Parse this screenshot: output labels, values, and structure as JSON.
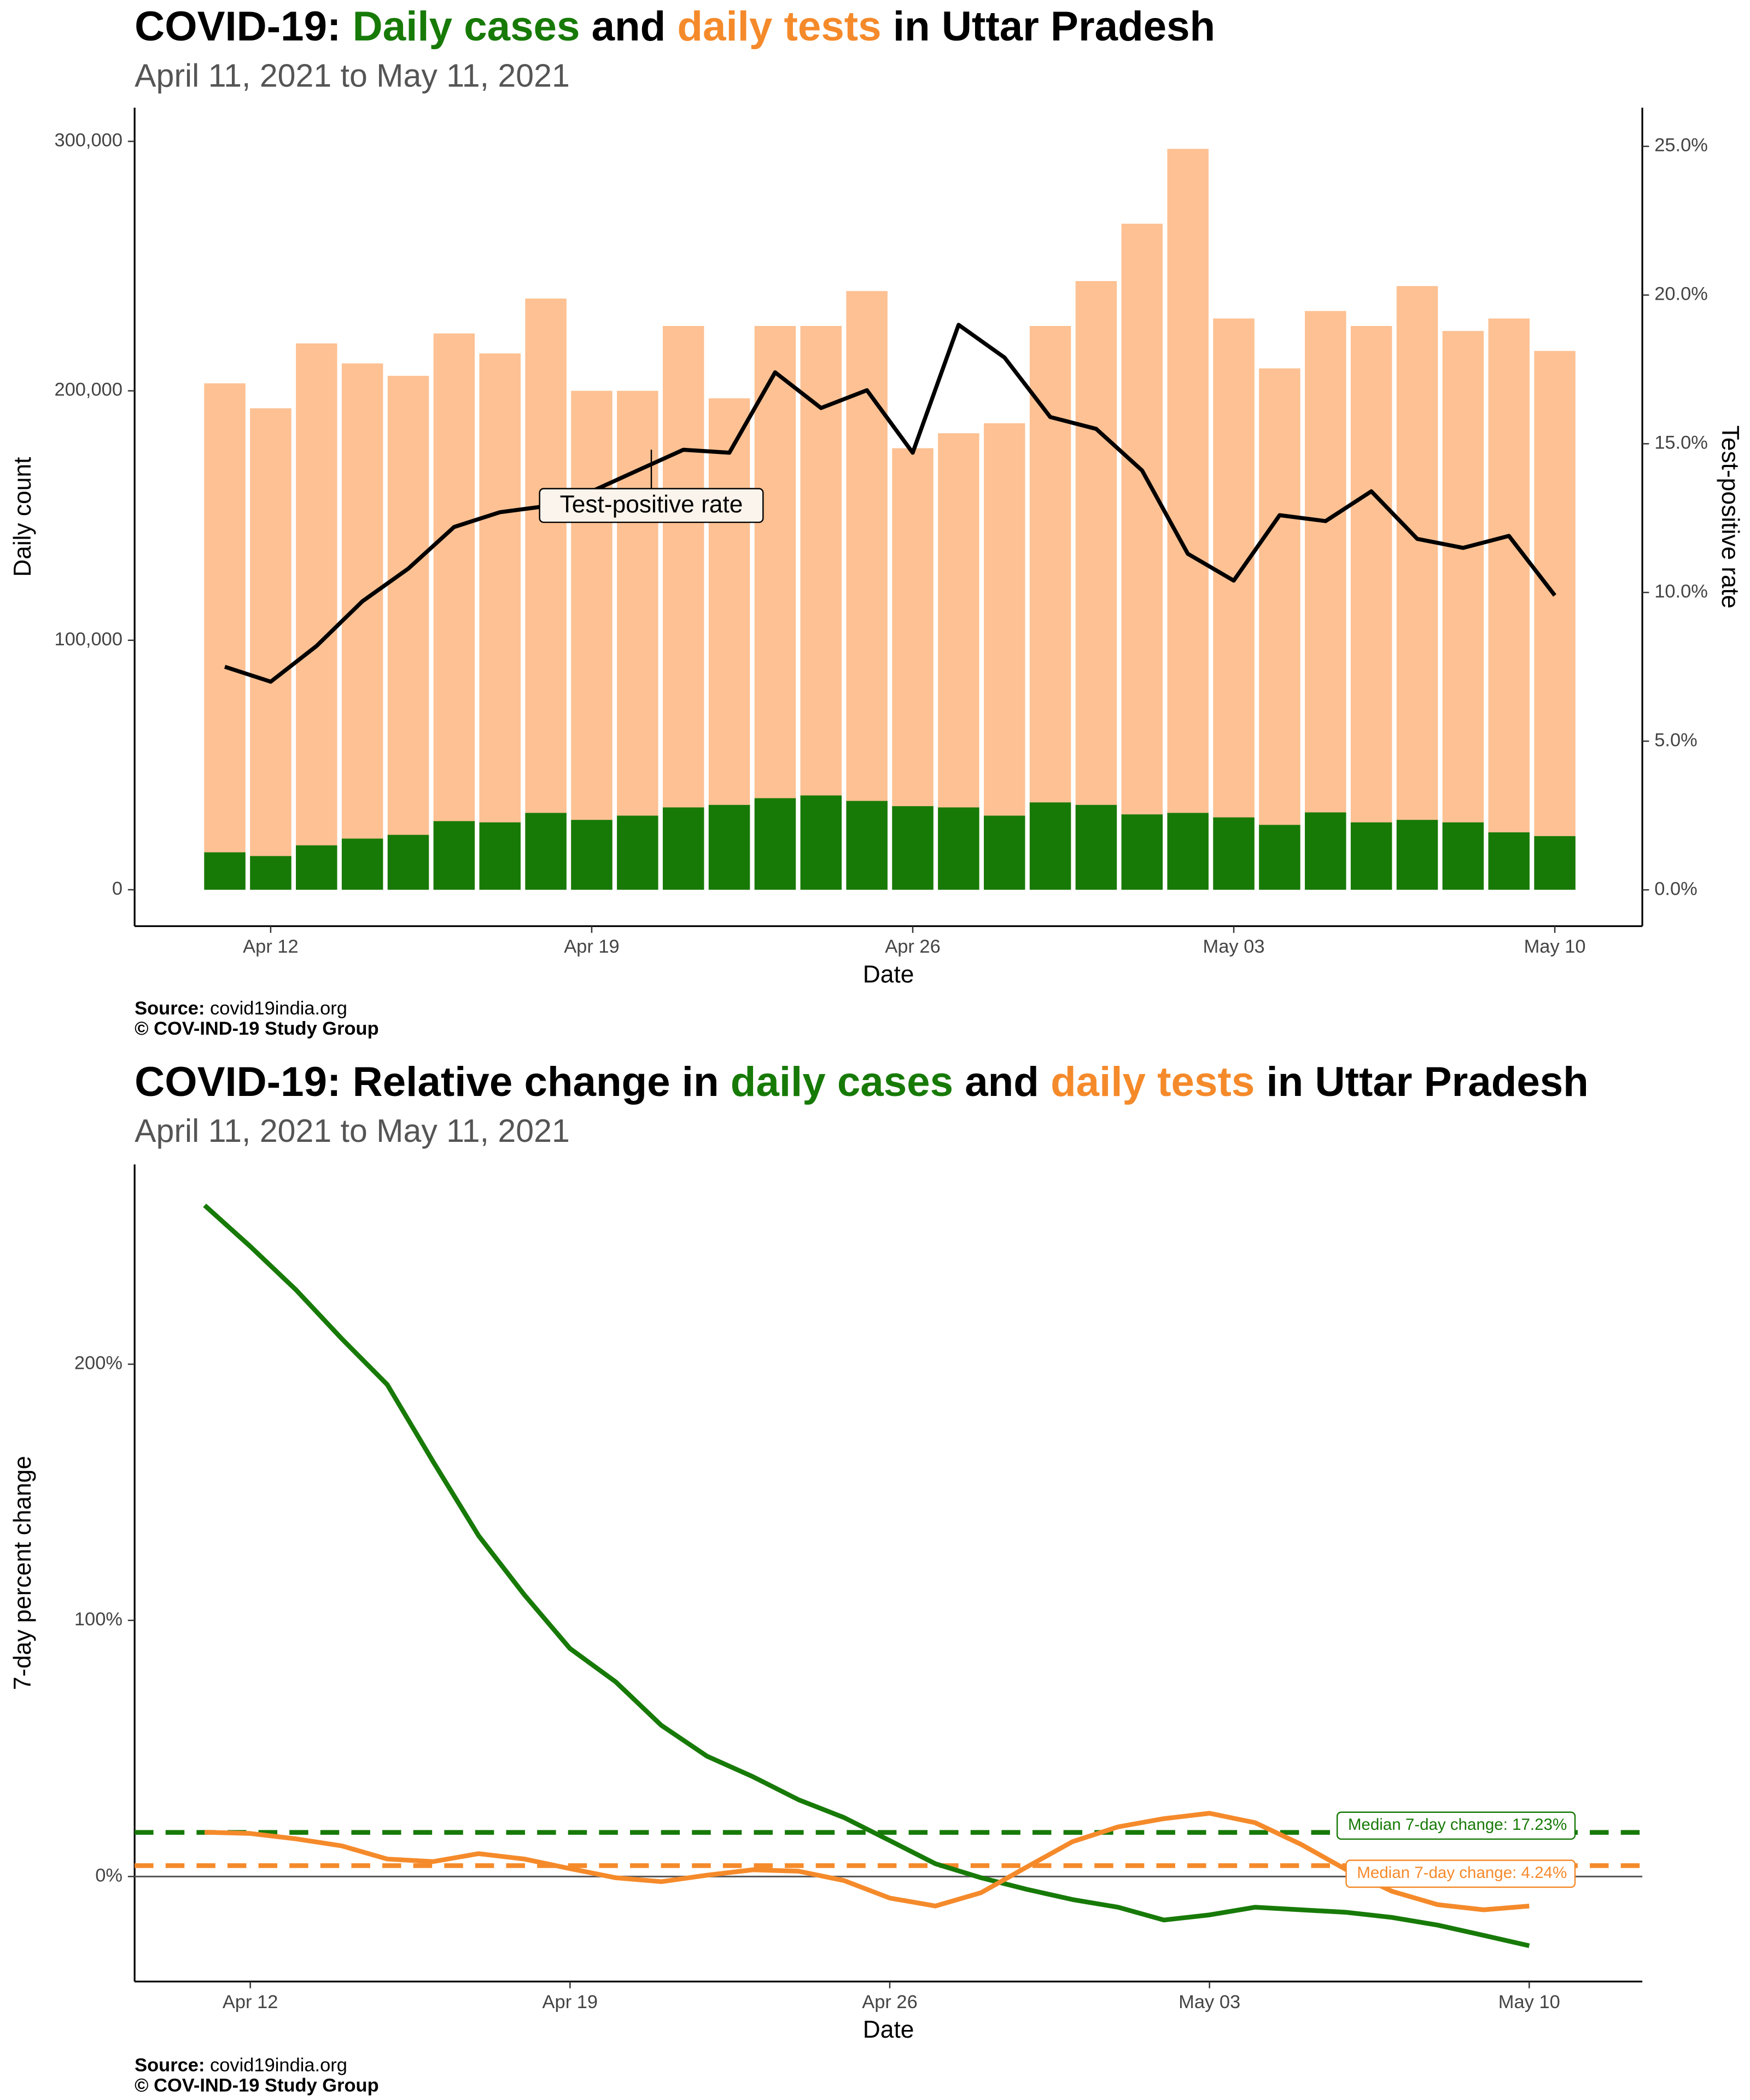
{
  "chart_data": [
    {
      "type": "bar",
      "title": [
        "COVID-19: ",
        "Daily cases",
        " and ",
        "daily tests",
        " in Uttar Pradesh"
      ],
      "title_colors": [
        "#000000",
        "#177a07",
        "#000000",
        "#f58a2b",
        "#000000"
      ],
      "subtitle": "April 11, 2021 to May 11, 2021",
      "xlabel": "Date",
      "ylabel": "Daily count",
      "y2label": "Test-positive rate",
      "categories": [
        null,
        "Apr 12",
        null,
        null,
        null,
        null,
        null,
        null,
        "Apr 19",
        null,
        null,
        null,
        null,
        null,
        null,
        "Apr 26",
        null,
        null,
        null,
        null,
        null,
        null,
        "May 03",
        null,
        null,
        null,
        null,
        null,
        null,
        "May 10"
      ],
      "series": [
        {
          "color": "#fdc193",
          "values": [
            203000,
            193000,
            219000,
            211000,
            206000,
            223000,
            215000,
            237000,
            200000,
            200000,
            226000,
            197000,
            226000,
            226000,
            240000,
            177000,
            183000,
            187000,
            226000,
            244000,
            267000,
            297000,
            229000,
            209000,
            232000,
            226000,
            242000,
            224000,
            229000,
            216000
          ]
        },
        {
          "color": "#177a07",
          "values": [
            15000,
            13500,
            17800,
            20500,
            22000,
            27500,
            27000,
            30800,
            28000,
            29700,
            33000,
            34000,
            36700,
            37800,
            35600,
            33500,
            33000,
            29700,
            35000,
            34000,
            30200,
            30800,
            29000,
            26000,
            31000,
            27000,
            28000,
            27000,
            23000,
            21500
          ]
        },
        {
          "name": "Test-positive rate",
          "type": "line",
          "axis": "y2",
          "color": "#000000",
          "values": [
            7.5,
            7.0,
            8.2,
            9.7,
            10.8,
            12.2,
            12.7,
            12.9,
            13.4,
            14.1,
            14.8,
            14.7,
            17.4,
            16.2,
            16.8,
            14.7,
            19.0,
            17.9,
            15.9,
            15.5,
            14.1,
            11.3,
            10.4,
            12.6,
            12.4,
            13.4,
            11.8,
            11.5,
            11.9,
            9.9
          ]
        }
      ],
      "ylim": [
        -14600,
        313500
      ],
      "yticks": [
        0,
        {
          "value": 100000,
          "label": "100,000"
        },
        {
          "value": 200000,
          "label": "200,000"
        },
        {
          "value": 300000,
          "label": "300,000"
        }
      ],
      "y2lim": [
        -1.22,
        26.3
      ],
      "y2ticks": [
        {
          "value": 0,
          "label": "0.0%"
        },
        {
          "value": 5,
          "label": "5.0%"
        },
        {
          "value": 10,
          "label": "10.0%"
        },
        {
          "value": 15,
          "label": "15.0%"
        },
        {
          "value": 20,
          "label": "20.0%"
        },
        {
          "value": 25,
          "label": "25.0%"
        }
      ],
      "source_label": "Source:",
      "source": "covid19india.org",
      "copyright": "© COV-IND-19 Study Group"
    },
    {
      "type": "line",
      "title": [
        "COVID-19: Relative change in ",
        "daily cases",
        " and ",
        "daily tests",
        " in Uttar Pradesh"
      ],
      "title_colors": [
        "#000000",
        "#177a07",
        "#000000",
        "#f58a2b",
        "#000000"
      ],
      "subtitle": "April 11, 2021 to May 11, 2021",
      "xlabel": "Date",
      "ylabel": "7-day percent change",
      "categories": [
        null,
        "Apr 12",
        null,
        null,
        null,
        null,
        null,
        null,
        "Apr 19",
        null,
        null,
        null,
        null,
        null,
        null,
        "Apr 26",
        null,
        null,
        null,
        null,
        null,
        null,
        "May 03",
        null,
        null,
        null,
        null,
        null,
        null,
        "May 10"
      ],
      "series": [
        {
          "color": "#177a07",
          "values": [
            262,
            246,
            229,
            210,
            192,
            162,
            133,
            110,
            89,
            76,
            59,
            47,
            39,
            30,
            23,
            14,
            5,
            -0.5,
            -5,
            -9,
            -12,
            -17,
            -15,
            -12,
            -13,
            -14,
            -16,
            -19,
            -23,
            -27
          ]
        },
        {
          "color": "#f58a2b",
          "values": [
            17.3,
            16.8,
            14.7,
            12,
            6.8,
            5.8,
            8.9,
            6.8,
            3.1,
            -0.5,
            -2,
            0.5,
            2.6,
            2.1,
            -1.6,
            -8.4,
            -11.5,
            -6.3,
            3.7,
            13.6,
            19.4,
            22.6,
            24.7,
            21,
            12.6,
            2.6,
            -5.8,
            -11,
            -13,
            -11.5
          ]
        }
      ],
      "hlines": [
        {
          "value": 17.23,
          "label": "Median 7-day change: 17.23%",
          "color": "#177a07"
        },
        {
          "value": 4.24,
          "label": "Median 7-day change: 4.24%",
          "color": "#f58a2b"
        }
      ],
      "zero_line": true,
      "ylim": [
        -41,
        278
      ],
      "yticks": [
        {
          "value": 0,
          "label": "0%"
        },
        {
          "value": 100,
          "label": "100%"
        },
        {
          "value": 200,
          "label": "200%"
        }
      ],
      "source_label": "Source:",
      "source": "covid19india.org",
      "copyright": "© COV-IND-19 Study Group"
    }
  ]
}
